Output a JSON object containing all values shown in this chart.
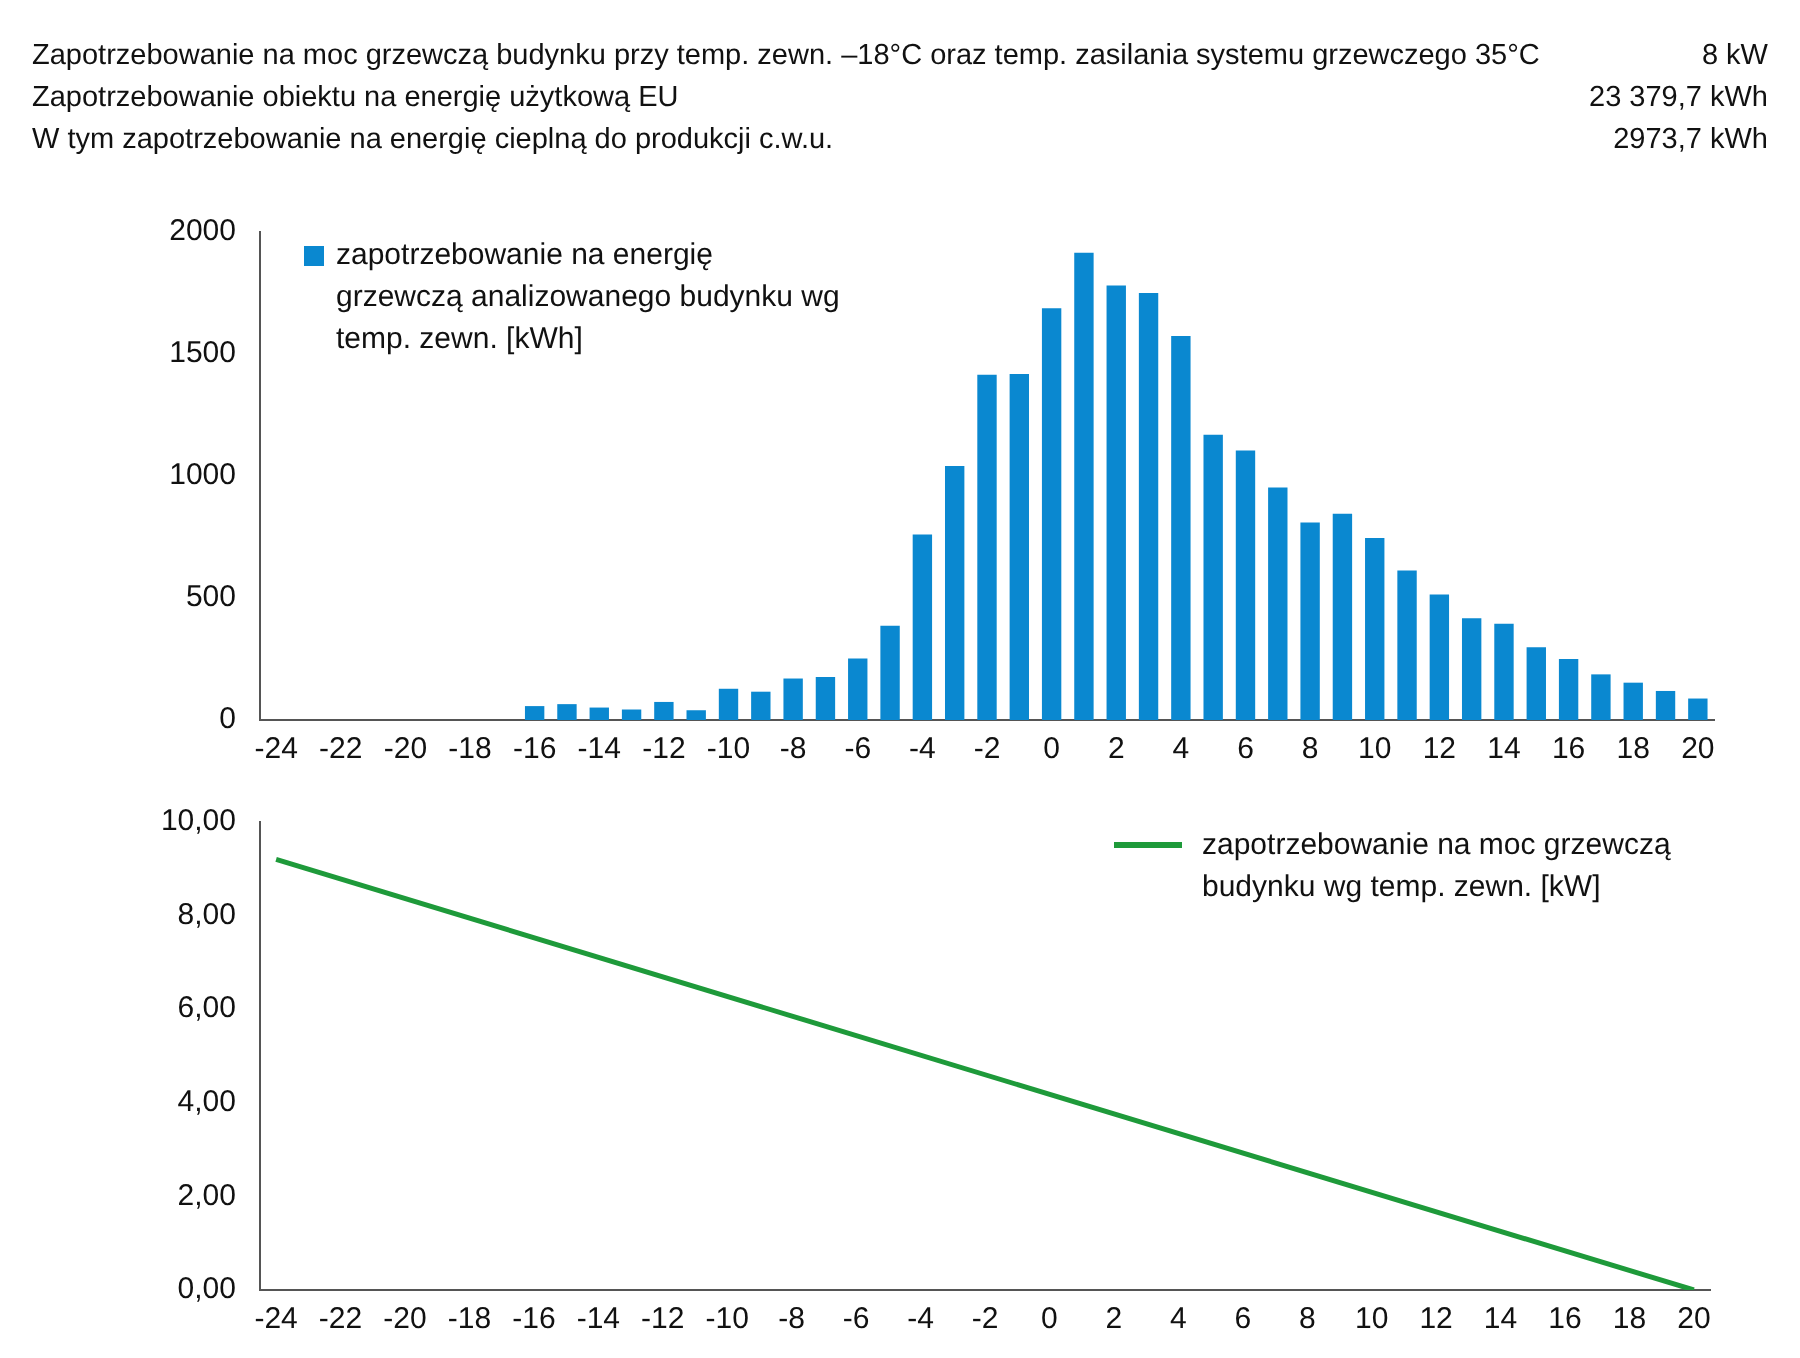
{
  "chart_data": [
    {
      "type": "bar",
      "annotations": [
        "Zapotrzebowanie na moc grzewczą budynku przy temp. zewn. –18°C oraz temp. zasilania systemu grzewczego 35°C",
        "8 kW",
        "Zapotrzebowanie obiektu na energię użytkową EU",
        "23 379,7 kWh",
        "W tym zapotrzebowanie na energię cieplną do produkcji c.w.u.",
        "2973,7 kWh"
      ],
      "categories": [
        "-24",
        null,
        "-22",
        null,
        "-20",
        null,
        "-18",
        null,
        "-16",
        null,
        "-14",
        null,
        "-12",
        null,
        "-10",
        null,
        "-8",
        null,
        "-6",
        null,
        "-4",
        null,
        "-2",
        null,
        "0",
        null,
        "2",
        null,
        "4",
        null,
        "6",
        null,
        "8",
        null,
        "10",
        null,
        "12",
        null,
        "14",
        null,
        "16",
        null,
        "18",
        null,
        "20"
      ],
      "series": [
        {
          "name": "zapotrzebowanie na energię grzewczą analizowanego budynku wg temp. zewn. [kWh]",
          "color": "#0a88d0",
          "values": [
            0,
            0,
            0,
            0,
            0,
            0,
            0,
            0,
            57,
            65,
            51,
            43,
            74,
            40,
            128,
            116,
            170,
            176,
            252,
            386,
            760,
            1041,
            1415,
            1418,
            1688,
            1915,
            1781,
            1750,
            1574,
            1169,
            1104,
            953,
            809,
            845,
            746,
            613,
            514,
            417,
            394,
            298,
            250,
            187,
            153,
            119,
            88
          ]
        }
      ],
      "ylim": [
        0,
        2000
      ],
      "yticks": [
        0,
        500,
        1000,
        1500,
        2000
      ],
      "legend": "top left"
    },
    {
      "type": "line",
      "x": [
        -24,
        20
      ],
      "series": [
        {
          "name": "zapotrzebowanie na moc grzewczą budynku wg temp. zewn. [kW]",
          "color": "#1e9a3a",
          "values": [
            9.2,
            0
          ]
        }
      ],
      "xlim": [
        -24.5,
        20.5
      ],
      "xticks": [
        -24,
        -22,
        -20,
        -18,
        -16,
        -14,
        -12,
        -10,
        -8,
        -6,
        -4,
        -2,
        0,
        2,
        4,
        6,
        8,
        10,
        12,
        14,
        16,
        18,
        20
      ],
      "ylim": [
        0,
        10
      ],
      "yticks": [
        {
          "value": 0,
          "label": "0,00"
        },
        {
          "value": 2,
          "label": "2,00"
        },
        {
          "value": 4,
          "label": "4,00"
        },
        {
          "value": 6,
          "label": "6,00"
        },
        {
          "value": 8,
          "label": "8,00"
        },
        {
          "value": 10,
          "label": "10,00"
        }
      ],
      "legend": "top right",
      "marker": "none"
    }
  ]
}
